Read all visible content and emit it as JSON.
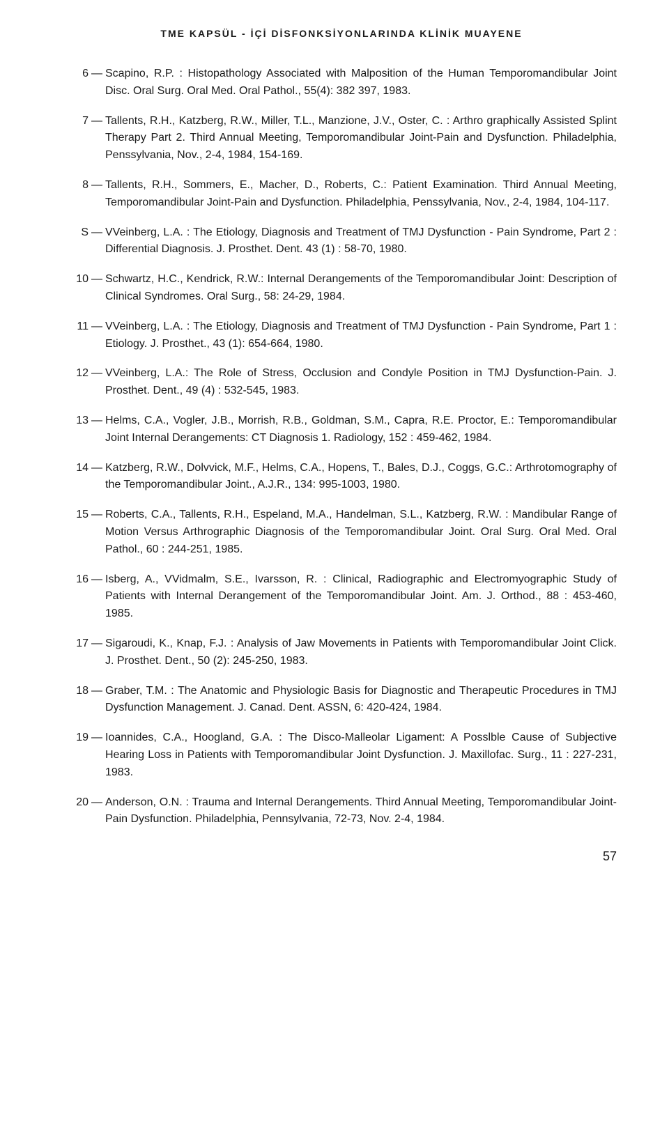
{
  "runningHead": "TME KAPSÜL - İÇİ DİSFONKSİYONLARINDA KLİNİK MUAYENE",
  "pageNumber": "57",
  "references": [
    {
      "num": "6",
      "text": "Scapino, R.P. : Histopathology Associated with Malposition of the Human Temporomandibular Joint Disc. Oral Surg. Oral Med. Oral Pathol., 55(4): 382 397, 1983."
    },
    {
      "num": "7",
      "text": "Tallents, R.H., Katzberg, R.W., Miller, T.L., Manzione, J.V., Oster, C. : Arthro graphically Assisted Splint Therapy Part 2. Third Annual Meeting, Temporomandibular Joint-Pain and Dysfunction. Philadelphia, Penssylvania, Nov., 2-4, 1984, 154-169."
    },
    {
      "num": "8",
      "text": "Tallents, R.H., Sommers, E., Macher, D., Roberts, C.: Patient Examination. Third Annual Meeting, Temporomandibular Joint-Pain and Dysfunction. Philadelphia, Penssylvania, Nov., 2-4, 1984, 104-117."
    },
    {
      "num": "S",
      "text": "VVeinberg, L.A. : The Etiology, Diagnosis and Treatment of TMJ Dysfunction - Pain Syndrome, Part 2 : Differential Diagnosis. J. Prosthet. Dent. 43 (1) : 58-70, 1980."
    },
    {
      "num": "10",
      "text": "Schwartz, H.C., Kendrick, R.W.: Internal Derangements of the Temporomandibular Joint: Description of Clinical Syndromes. Oral Surg., 58: 24-29, 1984."
    },
    {
      "num": "11",
      "text": "VVeinberg, L.A. : The Etiology, Diagnosis and Treatment of TMJ Dysfunction - Pain Syndrome, Part 1 : Etiology. J. Prosthet., 43 (1): 654-664, 1980."
    },
    {
      "num": "12",
      "text": "VVeinberg, L.A.: The Role of Stress, Occlusion and Condyle Position in TMJ Dysfunction-Pain. J. Prosthet. Dent., 49 (4) : 532-545, 1983."
    },
    {
      "num": "13",
      "text": "Helms, C.A., Vogler, J.B., Morrish, R.B., Goldman, S.M., Capra, R.E. Proctor, E.: Temporomandibular Joint Internal Derangements: CT Diagnosis 1. Radiology, 152 : 459-462, 1984."
    },
    {
      "num": "14",
      "text": "Katzberg, R.W., Dolvvick, M.F., Helms, C.A., Hopens, T., Bales, D.J., Coggs, G.C.: Arthrotomography of the Temporomandibular Joint., A.J.R., 134: 995-1003, 1980."
    },
    {
      "num": "15",
      "text": "Roberts, C.A., Tallents, R.H., Espeland, M.A., Handelman, S.L., Katzberg, R.W. : Mandibular Range of Motion Versus Arthrographic Diagnosis of the Temporomandibular Joint. Oral Surg. Oral Med. Oral Pathol., 60 : 244-251, 1985."
    },
    {
      "num": "16",
      "text": "Isberg, A., VVidmalm, S.E., Ivarsson, R. : Clinical, Radiographic and Electromyographic Study of Patients with Internal Derangement of the Temporomandibular Joint. Am. J. Orthod., 88 : 453-460, 1985."
    },
    {
      "num": "17",
      "text": "Sigaroudi, K., Knap, F.J. : Analysis of Jaw Movements in Patients with Temporomandibular Joint Click. J. Prosthet. Dent., 50 (2): 245-250, 1983."
    },
    {
      "num": "18",
      "text": "Graber, T.M. : The Anatomic and Physiologic Basis for Diagnostic and Therapeutic Procedures in TMJ Dysfunction Management. J. Canad. Dent. ASSN, 6: 420-424, 1984."
    },
    {
      "num": "19",
      "text": "Ioannides, C.A., Hoogland, G.A. : The Disco-Malleolar Ligament: A Posslble Cause of Subjective Hearing Loss in Patients with Temporomandibular Joint Dysfunction. J. Maxillofac. Surg., 11 : 227-231, 1983."
    },
    {
      "num": "20",
      "text": "Anderson, O.N. : Trauma and Internal Derangements. Third Annual Meeting, Temporomandibular Joint-Pain Dysfunction. Philadelphia, Pennsylvania, 72-73, Nov. 2-4, 1984."
    }
  ]
}
